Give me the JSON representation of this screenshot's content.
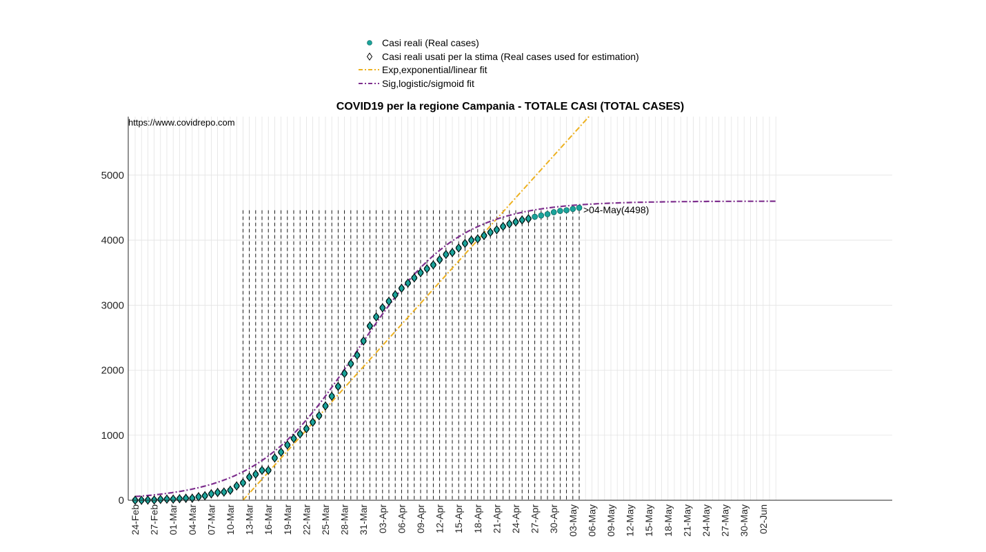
{
  "chart_data": {
    "type": "scatter",
    "title": "COVID19 per la regione Campania - TOTALE CASI (TOTAL CASES)",
    "watermark": "https://www.covidrepo.com",
    "xlabel": "",
    "ylabel": "",
    "x_start_date": "2020-02-24",
    "x_end_date": "2020-06-04",
    "ylim": [
      0,
      5900
    ],
    "yticks": [
      0,
      1000,
      2000,
      3000,
      4000,
      5000
    ],
    "xtick_labels": [
      "24-Feb",
      "27-Feb",
      "01-Mar",
      "04-Mar",
      "07-Mar",
      "10-Mar",
      "13-Mar",
      "16-Mar",
      "19-Mar",
      "22-Mar",
      "25-Mar",
      "28-Mar",
      "31-Mar",
      "03-Apr",
      "06-Apr",
      "09-Apr",
      "12-Apr",
      "15-Apr",
      "18-Apr",
      "21-Apr",
      "24-Apr",
      "27-Apr",
      "30-Apr",
      "03-May",
      "06-May",
      "09-May",
      "12-May",
      "15-May",
      "18-May",
      "21-May",
      "24-May",
      "27-May",
      "30-May",
      "02-Jun"
    ],
    "grid": true,
    "legend_position": "top",
    "legend": [
      {
        "label": "Casi reali (Real cases)",
        "marker": "dot",
        "color": "#1aa39a"
      },
      {
        "label": "Casi reali usati per la stima (Real cases used for estimation)",
        "marker": "diamond",
        "color": "#000000"
      },
      {
        "label": "Exp,exponential/linear fit",
        "marker": "dashdot",
        "color": "#edb120"
      },
      {
        "label": "Sig,logistic/sigmoid fit",
        "marker": "dashdot",
        "color": "#7e2f8e"
      }
    ],
    "series": [
      {
        "name": "Casi reali (Real cases)",
        "x": [
          "2020-02-24",
          "2020-02-25",
          "2020-02-26",
          "2020-02-27",
          "2020-02-28",
          "2020-02-29",
          "2020-03-01",
          "2020-03-02",
          "2020-03-03",
          "2020-03-04",
          "2020-03-05",
          "2020-03-06",
          "2020-03-07",
          "2020-03-08",
          "2020-03-09",
          "2020-03-10",
          "2020-03-11",
          "2020-03-12",
          "2020-03-13",
          "2020-03-14",
          "2020-03-15",
          "2020-03-16",
          "2020-03-17",
          "2020-03-18",
          "2020-03-19",
          "2020-03-20",
          "2020-03-21",
          "2020-03-22",
          "2020-03-23",
          "2020-03-24",
          "2020-03-25",
          "2020-03-26",
          "2020-03-27",
          "2020-03-28",
          "2020-03-29",
          "2020-03-30",
          "2020-03-31",
          "2020-04-01",
          "2020-04-02",
          "2020-04-03",
          "2020-04-04",
          "2020-04-05",
          "2020-04-06",
          "2020-04-07",
          "2020-04-08",
          "2020-04-09",
          "2020-04-10",
          "2020-04-11",
          "2020-04-12",
          "2020-04-13",
          "2020-04-14",
          "2020-04-15",
          "2020-04-16",
          "2020-04-17",
          "2020-04-18",
          "2020-04-19",
          "2020-04-20",
          "2020-04-21",
          "2020-04-22",
          "2020-04-23",
          "2020-04-24",
          "2020-04-25",
          "2020-04-26",
          "2020-04-27",
          "2020-04-28",
          "2020-04-29",
          "2020-04-30",
          "2020-05-01",
          "2020-05-02",
          "2020-05-03",
          "2020-05-04"
        ],
        "y": [
          0,
          0,
          3,
          4,
          13,
          17,
          17,
          24,
          30,
          31,
          54,
          69,
          99,
          120,
          126,
          154,
          220,
          268,
          356,
          400,
          460,
          460,
          650,
          740,
          850,
          950,
          1020,
          1100,
          1200,
          1300,
          1450,
          1600,
          1750,
          1950,
          2100,
          2230,
          2450,
          2680,
          2820,
          2960,
          3060,
          3160,
          3260,
          3340,
          3420,
          3500,
          3560,
          3620,
          3700,
          3780,
          3810,
          3880,
          3950,
          4000,
          4020,
          4070,
          4120,
          4160,
          4210,
          4250,
          4280,
          4310,
          4330,
          4360,
          4380,
          4400,
          4430,
          4450,
          4460,
          4480,
          4498
        ]
      },
      {
        "name": "Casi reali usati per la stima (Real cases used for estimation)",
        "x": [
          "2020-02-24",
          "2020-02-25",
          "2020-02-26",
          "2020-02-27",
          "2020-02-28",
          "2020-02-29",
          "2020-03-01",
          "2020-03-02",
          "2020-03-03",
          "2020-03-04",
          "2020-03-05",
          "2020-03-06",
          "2020-03-07",
          "2020-03-08",
          "2020-03-09",
          "2020-03-10",
          "2020-03-11",
          "2020-03-12",
          "2020-03-13",
          "2020-03-14",
          "2020-03-15",
          "2020-03-16",
          "2020-03-17",
          "2020-03-18",
          "2020-03-19",
          "2020-03-20",
          "2020-03-21",
          "2020-03-22",
          "2020-03-23",
          "2020-03-24",
          "2020-03-25",
          "2020-03-26",
          "2020-03-27",
          "2020-03-28",
          "2020-03-29",
          "2020-03-30",
          "2020-03-31",
          "2020-04-01",
          "2020-04-02",
          "2020-04-03",
          "2020-04-04",
          "2020-04-05",
          "2020-04-06",
          "2020-04-07",
          "2020-04-08",
          "2020-04-09",
          "2020-04-10",
          "2020-04-11",
          "2020-04-12",
          "2020-04-13",
          "2020-04-14",
          "2020-04-15",
          "2020-04-16",
          "2020-04-17",
          "2020-04-18",
          "2020-04-19",
          "2020-04-20",
          "2020-04-21",
          "2020-04-22",
          "2020-04-23",
          "2020-04-24",
          "2020-04-25",
          "2020-04-26"
        ],
        "y": [
          0,
          0,
          3,
          4,
          13,
          17,
          17,
          24,
          30,
          31,
          54,
          69,
          99,
          120,
          126,
          154,
          220,
          268,
          356,
          400,
          460,
          460,
          650,
          740,
          850,
          950,
          1020,
          1100,
          1200,
          1300,
          1450,
          1600,
          1750,
          1950,
          2100,
          2230,
          2450,
          2680,
          2820,
          2960,
          3060,
          3160,
          3260,
          3340,
          3420,
          3500,
          3560,
          3620,
          3700,
          3780,
          3810,
          3880,
          3950,
          4000,
          4020,
          4070,
          4120,
          4160,
          4210,
          4250,
          4280,
          4310,
          4330
        ]
      },
      {
        "name": "Exp,exponential/linear fit",
        "x": [
          "2020-03-12",
          "2020-05-06"
        ],
        "y": [
          0,
          5950
        ]
      },
      {
        "name": "Sig,logistic/sigmoid fit",
        "model": "logistic",
        "K": 4600,
        "midpoint": "2020-03-30",
        "rate": 0.125,
        "x_range": [
          "2020-02-24",
          "2020-06-04"
        ]
      }
    ],
    "annotation": {
      "text": "04-May(4498)",
      "x": "2020-05-04",
      "y": 4498
    },
    "vertical_marker_lines": {
      "from": "2020-03-12",
      "to": "2020-05-04",
      "style": "dashed"
    }
  }
}
